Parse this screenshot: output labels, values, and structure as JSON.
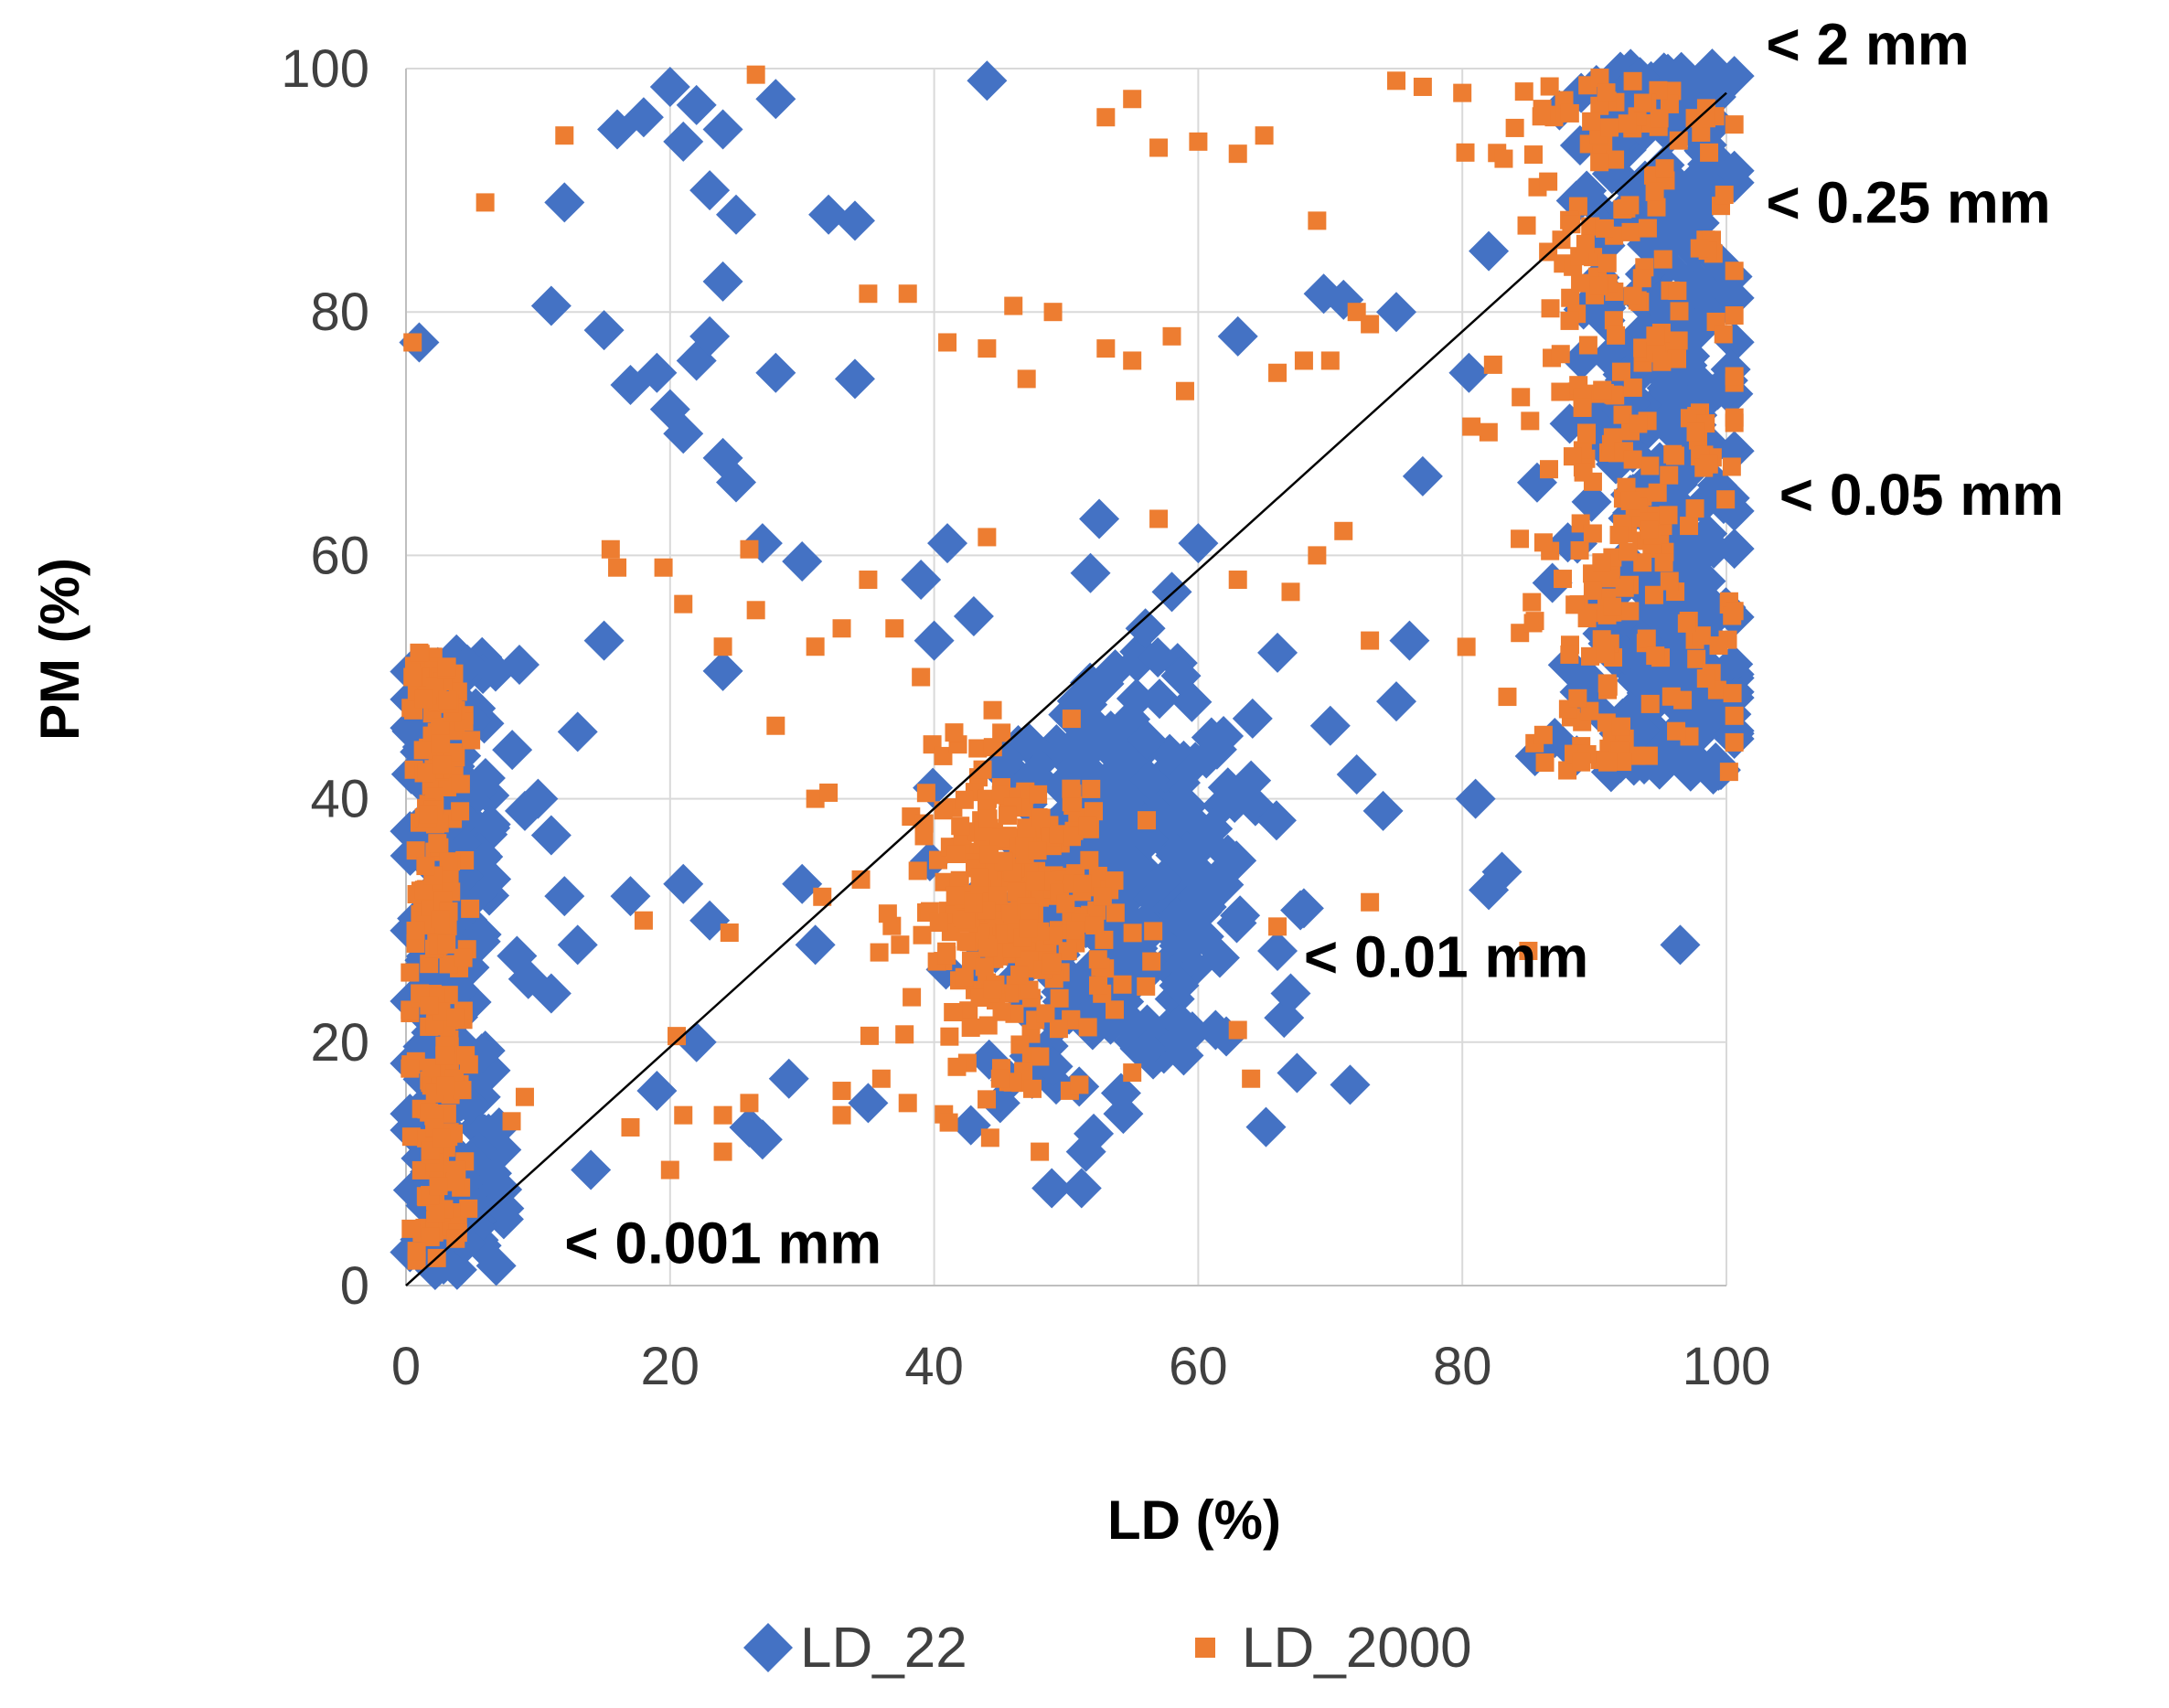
{
  "chart_data": {
    "type": "scatter",
    "title": "",
    "xlabel": "LD (%)",
    "ylabel": "PM (%)",
    "xlim": [
      0,
      100
    ],
    "ylim": [
      0,
      100
    ],
    "xticks": [
      "0",
      "20",
      "40",
      "60",
      "80",
      "100"
    ],
    "yticks": [
      "0",
      "20",
      "40",
      "60",
      "80",
      "100"
    ],
    "grid": true,
    "reference_line": {
      "name": "1:1 line",
      "from": [
        0,
        0
      ],
      "to": [
        100,
        98
      ],
      "color": "#000000"
    },
    "legend": {
      "placement": "bottom-center"
    },
    "annotations": [
      {
        "text": "< 2 mm",
        "x": 103,
        "y": 102
      },
      {
        "text": "< 0.25 mm",
        "x": 103,
        "y": 89
      },
      {
        "text": "< 0.05 mm",
        "x": 104,
        "y": 65
      },
      {
        "text": "< 0.01 mm",
        "x": 68,
        "y": 27
      },
      {
        "text": "< 0.001 mm",
        "x": 12,
        "y": 3.5
      }
    ],
    "series": [
      {
        "name": "LD_22",
        "marker": "diamond",
        "color": "#4472C4",
        "clusters": [
          {
            "name": "< 0.001 mm",
            "x_center": 3.5,
            "x_spread": 3.5,
            "y_range": [
              1,
              52
            ],
            "count": 260
          },
          {
            "name": "< 0.01 mm",
            "x_center": 54,
            "x_spread": 9,
            "y_center": 33,
            "y_spread": 13,
            "count": 330
          },
          {
            "name": "< 0.05 mm to < 2 mm",
            "x_center": 95,
            "x_spread": 6,
            "y_range": [
              42,
              100
            ],
            "count": 360
          }
        ],
        "points": [
          [
            1,
            77.5
          ],
          [
            12,
            89
          ],
          [
            11,
            80.5
          ],
          [
            15,
            78.5
          ],
          [
            16,
            95
          ],
          [
            18,
            96
          ],
          [
            20,
            98.5
          ],
          [
            22,
            97
          ],
          [
            21,
            94
          ],
          [
            23,
            90
          ],
          [
            24,
            95
          ],
          [
            25,
            88
          ],
          [
            24,
            82.5
          ],
          [
            28,
            97.5
          ],
          [
            32,
            88
          ],
          [
            34,
            87.5
          ],
          [
            17,
            74
          ],
          [
            19,
            75
          ],
          [
            20,
            72
          ],
          [
            22,
            76
          ],
          [
            23,
            78
          ],
          [
            21,
            70
          ],
          [
            24,
            68
          ],
          [
            25,
            66
          ],
          [
            27,
            61
          ],
          [
            28,
            75
          ],
          [
            34,
            74.5
          ],
          [
            30,
            59.5
          ],
          [
            24,
            50.5
          ],
          [
            15,
            53
          ],
          [
            13,
            45.5
          ],
          [
            44,
            99
          ],
          [
            69.5,
            81.5
          ],
          [
            71,
            81
          ],
          [
            75,
            80
          ],
          [
            77,
            66.5
          ],
          [
            80.5,
            75
          ],
          [
            82,
            85
          ],
          [
            89,
            98
          ],
          [
            91,
            96
          ],
          [
            85.5,
            43.5
          ],
          [
            87,
            45
          ],
          [
            88,
            51
          ],
          [
            83,
            34
          ],
          [
            81,
            40
          ],
          [
            82,
            32.5
          ],
          [
            99.5,
            47.5
          ],
          [
            99,
            42
          ],
          [
            96.5,
            28
          ],
          [
            71.5,
            16.5
          ],
          [
            66.5,
            22
          ],
          [
            67,
            24
          ],
          [
            66,
            27.5
          ],
          [
            64,
            41.5
          ],
          [
            63,
            78
          ],
          [
            52.5,
            63
          ],
          [
            74,
            39
          ],
          [
            75,
            48
          ],
          [
            76,
            53
          ],
          [
            72,
            42
          ],
          [
            70,
            46
          ],
          [
            66,
            52
          ],
          [
            68,
            31
          ],
          [
            60,
            61
          ],
          [
            58,
            57
          ],
          [
            56,
            54
          ],
          [
            51.5,
            11
          ],
          [
            45,
            15
          ],
          [
            49,
            18
          ],
          [
            52,
            21
          ],
          [
            41,
            61
          ],
          [
            39,
            58
          ],
          [
            40,
            53
          ],
          [
            43,
            55
          ],
          [
            30,
            33
          ],
          [
            31,
            28
          ],
          [
            35,
            15
          ],
          [
            26,
            13
          ],
          [
            27,
            12
          ],
          [
            29,
            17
          ],
          [
            21,
            33
          ],
          [
            23,
            30
          ],
          [
            22,
            20
          ],
          [
            19,
            16
          ],
          [
            17,
            32
          ],
          [
            14,
            9.5
          ],
          [
            13,
            28
          ],
          [
            12,
            32
          ],
          [
            11,
            24
          ],
          [
            10,
            40
          ],
          [
            9,
            39
          ],
          [
            11,
            37
          ]
        ]
      },
      {
        "name": "LD_2000",
        "marker": "square",
        "color": "#ED7D31",
        "clusters": [
          {
            "name": "< 0.001 mm",
            "x_center": 2.5,
            "x_spread": 2,
            "y_range": [
              2,
              52
            ],
            "count": 220
          },
          {
            "name": "< 0.01 mm",
            "x_center": 46,
            "x_spread": 7,
            "y_center": 31,
            "y_spread": 10,
            "count": 320
          },
          {
            "name": "< 0.05 mm to < 2 mm",
            "x_center": 92,
            "x_spread": 8,
            "y_range": [
              42,
              99.5
            ],
            "count": 300
          }
        ],
        "points": [
          [
            0.5,
            77.5
          ],
          [
            6,
            89
          ],
          [
            12,
            94.5
          ],
          [
            26.5,
            99.5
          ],
          [
            53,
            96
          ],
          [
            55,
            97.5
          ],
          [
            57,
            93.5
          ],
          [
            60,
            94
          ],
          [
            63,
            93
          ],
          [
            65,
            94.5
          ],
          [
            69,
            87.5
          ],
          [
            72,
            80
          ],
          [
            75,
            99
          ],
          [
            77,
            98.5
          ],
          [
            80,
            98
          ],
          [
            35,
            81.5
          ],
          [
            38,
            81.5
          ],
          [
            41,
            77.5
          ],
          [
            44,
            77
          ],
          [
            46,
            80.5
          ],
          [
            47,
            74.5
          ],
          [
            49,
            80
          ],
          [
            53,
            77
          ],
          [
            55,
            76
          ],
          [
            58,
            78
          ],
          [
            59,
            73.5
          ],
          [
            66,
            75
          ],
          [
            68,
            76
          ],
          [
            70,
            76
          ],
          [
            73,
            79
          ],
          [
            15.5,
            60.5
          ],
          [
            16,
            59
          ],
          [
            19.5,
            59
          ],
          [
            21,
            56
          ],
          [
            24,
            52.5
          ],
          [
            26,
            60.5
          ],
          [
            26.5,
            55.5
          ],
          [
            28,
            46
          ],
          [
            31,
            52.5
          ],
          [
            33,
            54
          ],
          [
            35,
            58
          ],
          [
            37,
            54
          ],
          [
            39,
            50
          ],
          [
            44,
            61.5
          ],
          [
            57,
            63
          ],
          [
            63,
            58
          ],
          [
            67,
            57
          ],
          [
            69,
            60
          ],
          [
            71,
            62
          ],
          [
            73,
            53
          ],
          [
            20.5,
            20.5
          ],
          [
            21,
            14
          ],
          [
            18,
            30
          ],
          [
            17,
            13
          ],
          [
            20,
            9.5
          ],
          [
            24,
            11
          ],
          [
            24,
            14
          ],
          [
            26,
            15
          ],
          [
            24.5,
            29
          ],
          [
            31,
            40
          ],
          [
            32,
            40.5
          ],
          [
            33,
            16
          ],
          [
            33,
            14
          ],
          [
            36,
            17
          ],
          [
            38,
            15
          ],
          [
            45,
            17
          ],
          [
            48,
            11
          ],
          [
            51,
            16.5
          ],
          [
            55,
            17.5
          ],
          [
            63,
            21
          ],
          [
            64,
            17
          ],
          [
            66,
            29.5
          ],
          [
            73,
            31.5
          ],
          [
            85,
            27.5
          ],
          [
            89,
            43
          ],
          [
            91,
            43
          ],
          [
            9,
            15.5
          ],
          [
            8,
            13.5
          ],
          [
            1,
            52
          ],
          [
            0.5,
            50
          ]
        ]
      }
    ]
  }
}
